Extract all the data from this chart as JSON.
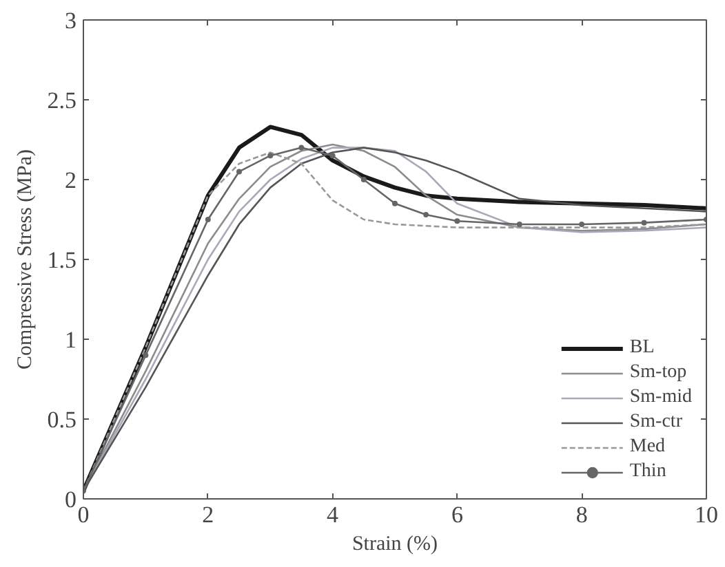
{
  "chart_data": {
    "type": "line",
    "xlabel": "Strain (%)",
    "ylabel": "Compressive Stress (MPa)",
    "xlim": [
      0,
      10
    ],
    "ylim": [
      0,
      3
    ],
    "xticks": [
      0,
      2,
      4,
      6,
      8,
      10
    ],
    "yticks": [
      0,
      0.5,
      1,
      1.5,
      2,
      2.5,
      3
    ],
    "grid": false,
    "legend": "bottom right",
    "x": [
      0,
      1,
      2,
      2.5,
      3,
      3.5,
      4,
      4.5,
      5,
      5.5,
      6,
      7,
      8,
      9,
      10
    ],
    "series": [
      {
        "name": "BL",
        "color": "#1a1a1a",
        "values": [
          0.05,
          0.95,
          1.9,
          2.2,
          2.33,
          2.28,
          2.12,
          2.02,
          1.95,
          1.9,
          1.88,
          1.86,
          1.85,
          1.84,
          1.82
        ]
      },
      {
        "name": "Sm-top",
        "color": "#8c8c8c",
        "values": [
          0.05,
          0.8,
          1.6,
          1.88,
          2.08,
          2.18,
          2.22,
          2.18,
          2.08,
          1.9,
          1.78,
          1.7,
          1.68,
          1.69,
          1.72
        ]
      },
      {
        "name": "Sm-mid",
        "color": "#a8a8b8",
        "values": [
          0.05,
          0.75,
          1.5,
          1.8,
          2.0,
          2.13,
          2.2,
          2.2,
          2.18,
          2.05,
          1.85,
          1.7,
          1.67,
          1.68,
          1.7
        ]
      },
      {
        "name": "Sm-ctr",
        "color": "#555555",
        "values": [
          0.05,
          0.7,
          1.4,
          1.72,
          1.95,
          2.1,
          2.17,
          2.2,
          2.17,
          2.12,
          2.05,
          1.88,
          1.84,
          1.82,
          1.8
        ]
      },
      {
        "name": "Med",
        "color": "#999999",
        "line_style": "dashed",
        "values": [
          0.05,
          0.95,
          1.9,
          2.1,
          2.17,
          2.1,
          1.87,
          1.75,
          1.72,
          1.71,
          1.7,
          1.7,
          1.7,
          1.7,
          1.72
        ]
      },
      {
        "name": "Thin",
        "color": "#666666",
        "marker": "circle",
        "values": [
          0.05,
          0.9,
          1.75,
          2.05,
          2.15,
          2.2,
          2.15,
          2.0,
          1.85,
          1.78,
          1.74,
          1.72,
          1.72,
          1.73,
          1.75
        ]
      }
    ]
  }
}
